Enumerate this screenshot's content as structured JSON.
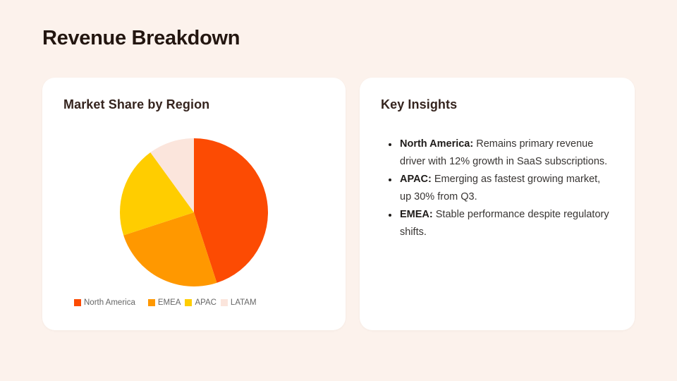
{
  "page": {
    "title": "Revenue Breakdown",
    "background_color": "#FCF2EC"
  },
  "chart_card": {
    "title": "Market Share by Region"
  },
  "chart_data": {
    "type": "pie",
    "title": "Market Share by Region",
    "categories": [
      "North America",
      "EMEA",
      "APAC",
      "LATAM"
    ],
    "values": [
      45,
      25,
      20,
      10
    ],
    "colors": [
      "#FC4B03",
      "#FF9800",
      "#FFCD00",
      "#FBE5DC"
    ],
    "start_angle_deg": 0,
    "direction": "clockwise",
    "legend_position": "bottom",
    "legend_text_color": "#666666"
  },
  "insights_card": {
    "title": "Key Insights",
    "bullets": [
      {
        "label": "North America:",
        "text": "Remains primary revenue driver with 12% growth in SaaS subscriptions."
      },
      {
        "label": "APAC:",
        "text": "Emerging as fastest growing market, up 30% from Q3."
      },
      {
        "label": "EMEA:",
        "text": "Stable performance despite regulatory shifts."
      }
    ]
  }
}
